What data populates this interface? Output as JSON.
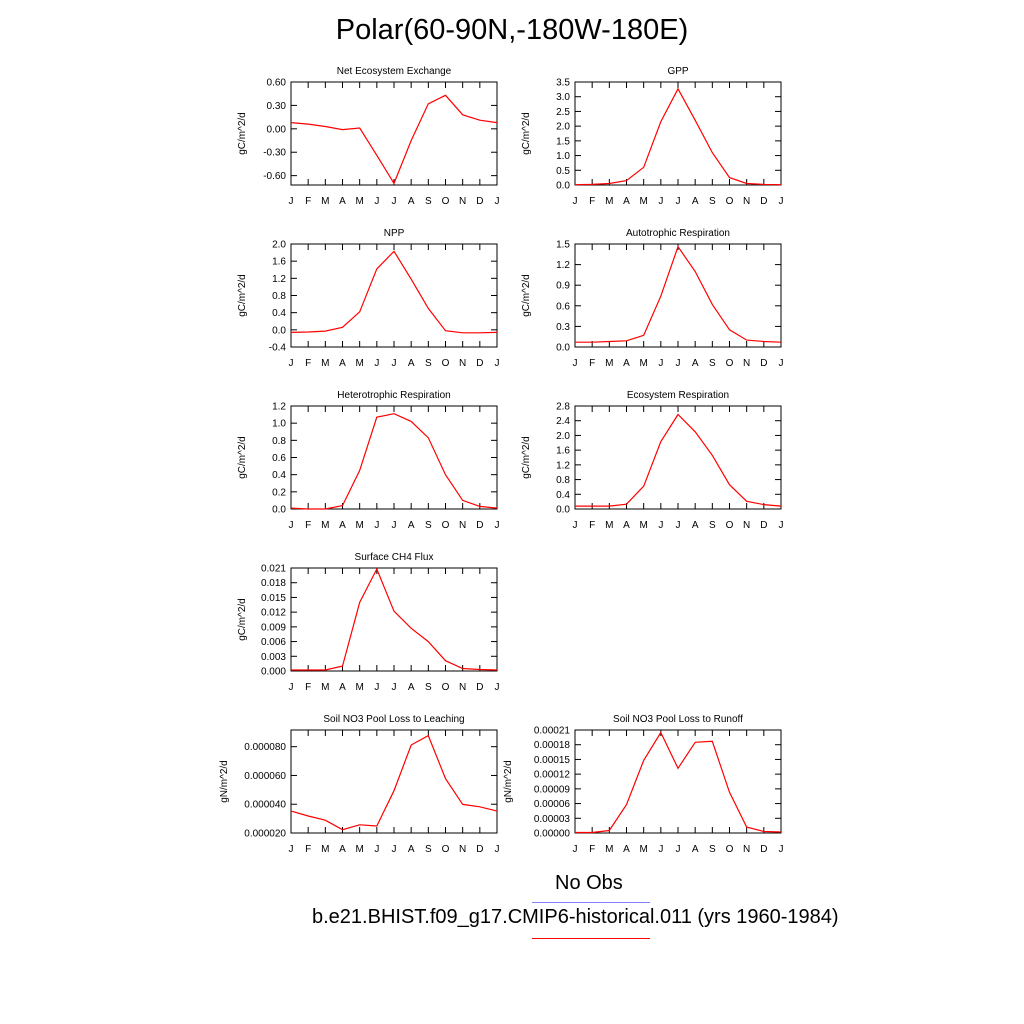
{
  "title": "Polar(60-90N,-180W-180E)",
  "legend": {
    "obs_label": "No Obs",
    "model_label": "b.e21.BHIST.f09_g17.CMIP6-historical.011 (yrs 1960-1984)",
    "obs_color": "#7f7fff",
    "model_color": "#ff0000"
  },
  "line_color": "#ff0000",
  "months": [
    "J",
    "F",
    "M",
    "A",
    "M",
    "J",
    "J",
    "A",
    "S",
    "O",
    "N",
    "D",
    "J"
  ],
  "chart_data": [
    {
      "type": "line",
      "title": "Net Ecosystem Exchange",
      "ylabel": "gC/m^2/d",
      "ylim": [
        -0.72,
        0.6
      ],
      "yticks": [
        0.6,
        0.3,
        0.0,
        -0.3,
        -0.6
      ],
      "yticklabels": [
        "0.60",
        "0.30",
        "0.00",
        "-0.30",
        "-0.60"
      ],
      "values": [
        0.08,
        0.06,
        0.03,
        -0.01,
        0.01,
        -0.34,
        -0.7,
        -0.15,
        0.32,
        0.43,
        0.18,
        0.11,
        0.08
      ]
    },
    {
      "type": "line",
      "title": "GPP",
      "ylabel": "gC/m^2/d",
      "ylim": [
        0,
        3.5
      ],
      "yticks": [
        3.5,
        3.0,
        2.5,
        2.0,
        1.5,
        1.0,
        0.5,
        0.0
      ],
      "yticklabels": [
        "3.5",
        "3.0",
        "2.5",
        "2.0",
        "1.5",
        "1.0",
        "0.5",
        "0.0"
      ],
      "values": [
        0.01,
        0.02,
        0.05,
        0.15,
        0.6,
        2.15,
        3.27,
        2.2,
        1.1,
        0.25,
        0.05,
        0.02,
        0.01
      ]
    },
    {
      "type": "line",
      "title": "NPP",
      "ylabel": "gC/m^2/d",
      "ylim": [
        -0.4,
        2.0
      ],
      "yticks": [
        2.0,
        1.6,
        1.2,
        0.8,
        0.4,
        0.0,
        -0.4
      ],
      "yticklabels": [
        "2.0",
        "1.6",
        "1.2",
        "0.8",
        "0.4",
        "0.0",
        "-0.4"
      ],
      "values": [
        -0.06,
        -0.05,
        -0.03,
        0.06,
        0.42,
        1.42,
        1.83,
        1.18,
        0.5,
        -0.02,
        -0.07,
        -0.07,
        -0.06
      ]
    },
    {
      "type": "line",
      "title": "Autotrophic Respiration",
      "ylabel": "gC/m^2/d",
      "ylim": [
        0,
        1.5
      ],
      "yticks": [
        1.5,
        1.2,
        0.9,
        0.6,
        0.3,
        0.0
      ],
      "yticklabels": [
        "1.5",
        "1.2",
        "0.9",
        "0.6",
        "0.3",
        "0.0"
      ],
      "values": [
        0.07,
        0.07,
        0.08,
        0.09,
        0.17,
        0.74,
        1.46,
        1.1,
        0.62,
        0.25,
        0.1,
        0.08,
        0.07
      ]
    },
    {
      "type": "line",
      "title": "Heterotrophic Respiration",
      "ylabel": "gC/m^2/d",
      "ylim": [
        0,
        1.2
      ],
      "yticks": [
        1.2,
        1.0,
        0.8,
        0.6,
        0.4,
        0.2,
        0.0
      ],
      "yticklabels": [
        "1.2",
        "1.0",
        "0.8",
        "0.6",
        "0.4",
        "0.2",
        "0.0"
      ],
      "values": [
        0.01,
        0.0,
        0.0,
        0.04,
        0.45,
        1.07,
        1.11,
        1.02,
        0.83,
        0.4,
        0.1,
        0.03,
        0.01
      ]
    },
    {
      "type": "line",
      "title": "Ecosystem Respiration",
      "ylabel": "gC/m^2/d",
      "ylim": [
        0,
        2.8
      ],
      "yticks": [
        2.8,
        2.4,
        2.0,
        1.6,
        1.2,
        0.8,
        0.4,
        0.0
      ],
      "yticklabels": [
        "2.8",
        "2.4",
        "2.0",
        "1.6",
        "1.2",
        "0.8",
        "0.4",
        "0.0"
      ],
      "values": [
        0.08,
        0.08,
        0.08,
        0.13,
        0.62,
        1.83,
        2.57,
        2.1,
        1.46,
        0.66,
        0.21,
        0.12,
        0.08
      ]
    },
    {
      "type": "line",
      "title": "Surface CH4 Flux",
      "ylabel": "gC/m^2/d",
      "ylim": [
        0,
        0.021
      ],
      "yticks": [
        0.021,
        0.018,
        0.015,
        0.012,
        0.009,
        0.006,
        0.003,
        0.0
      ],
      "yticklabels": [
        "0.021",
        "0.018",
        "0.015",
        "0.012",
        "0.009",
        "0.006",
        "0.003",
        "0.000"
      ],
      "values": [
        0.0002,
        0.0002,
        0.0002,
        0.001,
        0.014,
        0.0208,
        0.0122,
        0.0087,
        0.006,
        0.0021,
        0.0005,
        0.0003,
        0.0002
      ]
    },
    {
      "type": "line",
      "title": "Soil NO3 Pool Loss to Leaching",
      "ylabel": "gN/m^2/d",
      "ylim": [
        2e-05,
        9.16e-05
      ],
      "yticks": [
        8e-05,
        6e-05,
        4e-05,
        2e-05
      ],
      "yticklabels": [
        "0.000080",
        "0.000060",
        "0.000040",
        "0.000020"
      ],
      "values": [
        3.52e-05,
        3.18e-05,
        2.89e-05,
        2.23e-05,
        2.57e-05,
        2.49e-05,
        4.94e-05,
        8.12e-05,
        8.77e-05,
        5.78e-05,
        3.99e-05,
        3.82e-05,
        3.52e-05
      ]
    },
    {
      "type": "line",
      "title": "Soil NO3 Pool Loss to Runoff",
      "ylabel": "gN/m^2/d",
      "ylim": [
        0,
        0.00021
      ],
      "yticks": [
        0.00021,
        0.00018,
        0.00015,
        0.00012,
        9e-05,
        6e-05,
        3e-05,
        0.0
      ],
      "yticklabels": [
        "0.00021",
        "0.00018",
        "0.00015",
        "0.00012",
        "0.00009",
        "0.00006",
        "0.00003",
        "0.00000"
      ],
      "values": [
        1e-06,
        1e-06,
        5e-06,
        5.8e-05,
        0.000148,
        0.000205,
        0.000132,
        0.000185,
        0.000187,
        8.3e-05,
        1.2e-05,
        3e-06,
        2e-06
      ]
    }
  ]
}
